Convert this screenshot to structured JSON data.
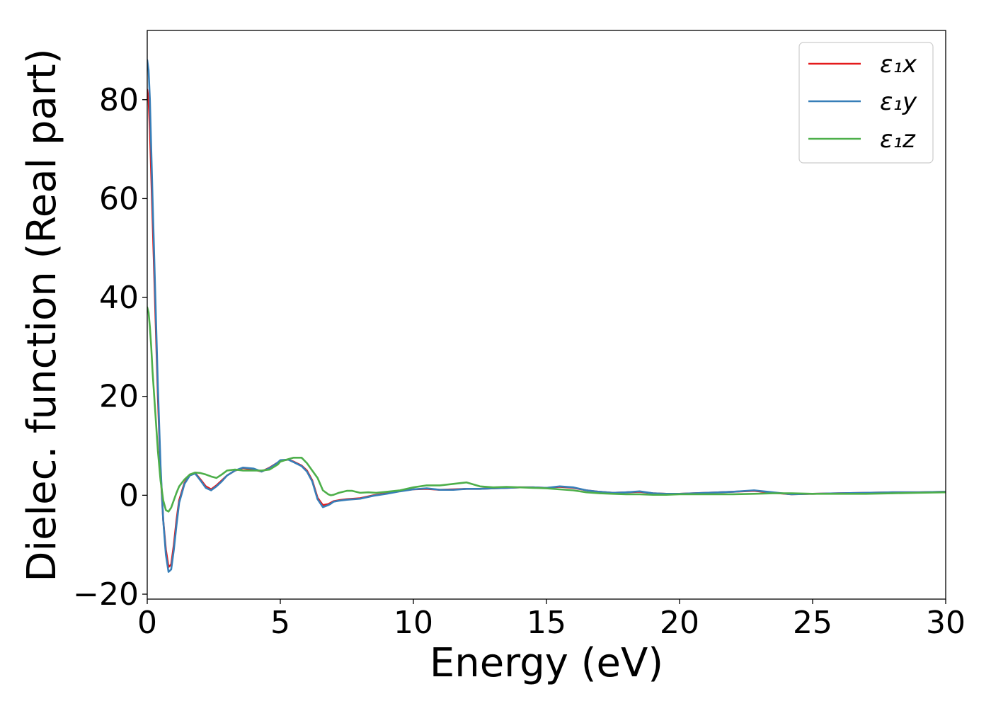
{
  "chart_data": {
    "type": "line",
    "title": "",
    "xlabel": "Energy (eV)",
    "ylabel": "Dielec. function (Real part)",
    "xlim": [
      0,
      30
    ],
    "ylim": [
      -21,
      94
    ],
    "xticks": [
      0,
      5,
      10,
      15,
      20,
      25,
      30
    ],
    "yticks": [
      -20,
      0,
      20,
      40,
      60,
      80
    ],
    "xtick_labels": [
      "0",
      "5",
      "10",
      "15",
      "20",
      "25",
      "30"
    ],
    "ytick_labels": [
      "−20",
      "0",
      "20",
      "40",
      "60",
      "80"
    ],
    "grid": false,
    "legend_position": "top-right",
    "series": [
      {
        "name": "ε₁x",
        "color": "#e41a1c",
        "x": [
          0,
          0.05,
          0.1,
          0.15,
          0.2,
          0.3,
          0.4,
          0.5,
          0.6,
          0.7,
          0.8,
          0.9,
          1.0,
          1.1,
          1.2,
          1.4,
          1.6,
          1.8,
          2.0,
          2.2,
          2.4,
          2.6,
          2.8,
          3.0,
          3.3,
          3.6,
          4.0,
          4.3,
          4.6,
          4.9,
          5.0,
          5.3,
          5.5,
          5.8,
          6.0,
          6.2,
          6.4,
          6.6,
          6.8,
          6.9,
          7.0,
          7.2,
          7.5,
          8.0,
          8.5,
          9.0,
          9.5,
          10.0,
          10.5,
          11.0,
          11.5,
          12.0,
          12.5,
          13.0,
          13.5,
          14.0,
          14.5,
          15.0,
          15.5,
          16.0,
          16.5,
          17.0,
          17.5,
          18.0,
          18.5,
          19.0,
          19.5,
          20.0,
          21.0,
          22.0,
          22.8,
          23.5,
          24.2,
          25.0,
          26.0,
          27.0,
          28.0,
          29.0,
          30.0
        ],
        "y": [
          82,
          80,
          74,
          65,
          56,
          38,
          20,
          5,
          -5,
          -11,
          -14.5,
          -14,
          -10,
          -5,
          -1,
          2.5,
          4.2,
          4.5,
          3.2,
          1.8,
          1.2,
          2.0,
          3.0,
          4.0,
          5.0,
          5.5,
          5.2,
          4.8,
          5.6,
          6.6,
          7.0,
          7.2,
          6.8,
          6.0,
          5.0,
          3.0,
          -0.5,
          -2.0,
          -1.8,
          -1.5,
          -1.2,
          -1.0,
          -0.8,
          -0.6,
          0.0,
          0.4,
          0.9,
          1.2,
          1.3,
          1.1,
          1.2,
          1.3,
          1.3,
          1.4,
          1.5,
          1.6,
          1.6,
          1.5,
          1.7,
          1.5,
          1.0,
          0.7,
          0.5,
          0.6,
          0.7,
          0.4,
          0.3,
          0.3,
          0.5,
          0.7,
          0.9,
          0.5,
          0.2,
          0.3,
          0.4,
          0.5,
          0.6,
          0.6,
          0.7
        ]
      },
      {
        "name": "ε₁y",
        "color": "#377eb8",
        "x": [
          0,
          0.05,
          0.1,
          0.15,
          0.2,
          0.3,
          0.4,
          0.5,
          0.6,
          0.7,
          0.8,
          0.9,
          1.0,
          1.1,
          1.2,
          1.4,
          1.6,
          1.8,
          2.0,
          2.2,
          2.4,
          2.6,
          2.8,
          3.0,
          3.3,
          3.6,
          4.0,
          4.3,
          4.6,
          4.9,
          5.0,
          5.3,
          5.5,
          5.8,
          6.0,
          6.2,
          6.4,
          6.6,
          6.8,
          6.9,
          7.0,
          7.2,
          7.5,
          8.0,
          8.5,
          9.0,
          9.5,
          10.0,
          10.5,
          11.0,
          11.5,
          12.0,
          12.5,
          13.0,
          13.5,
          14.0,
          14.5,
          15.0,
          15.5,
          16.0,
          16.5,
          17.0,
          17.5,
          18.0,
          18.5,
          19.0,
          19.5,
          20.0,
          21.0,
          22.0,
          22.8,
          23.5,
          24.2,
          25.0,
          26.0,
          27.0,
          28.0,
          29.0,
          30.0
        ],
        "y": [
          88,
          86,
          80,
          70,
          60,
          41,
          22,
          6,
          -5,
          -12,
          -15.5,
          -15,
          -11,
          -6,
          -1.5,
          2.3,
          4.0,
          4.4,
          3.0,
          1.5,
          1.0,
          1.8,
          2.8,
          4.0,
          5.0,
          5.6,
          5.4,
          4.8,
          5.5,
          6.6,
          7.1,
          7.2,
          6.7,
          5.9,
          4.8,
          2.8,
          -0.8,
          -2.4,
          -2.0,
          -1.7,
          -1.3,
          -1.1,
          -0.9,
          -0.7,
          -0.1,
          0.3,
          0.8,
          1.2,
          1.4,
          1.1,
          1.1,
          1.3,
          1.3,
          1.4,
          1.5,
          1.6,
          1.6,
          1.5,
          1.8,
          1.6,
          1.0,
          0.7,
          0.5,
          0.6,
          0.8,
          0.4,
          0.3,
          0.3,
          0.5,
          0.7,
          1.0,
          0.6,
          0.2,
          0.3,
          0.4,
          0.5,
          0.6,
          0.6,
          0.7
        ]
      },
      {
        "name": "ε₁z",
        "color": "#4daf4a",
        "x": [
          0,
          0.05,
          0.1,
          0.15,
          0.2,
          0.3,
          0.4,
          0.5,
          0.6,
          0.7,
          0.8,
          0.9,
          1.0,
          1.1,
          1.2,
          1.4,
          1.6,
          1.8,
          2.0,
          2.2,
          2.4,
          2.6,
          2.8,
          3.0,
          3.3,
          3.6,
          4.0,
          4.3,
          4.6,
          4.9,
          5.0,
          5.3,
          5.5,
          5.8,
          6.0,
          6.2,
          6.4,
          6.6,
          6.8,
          6.9,
          7.0,
          7.2,
          7.5,
          7.7,
          8.0,
          8.3,
          8.6,
          9.0,
          9.5,
          10.0,
          10.5,
          11.0,
          11.5,
          12.0,
          12.5,
          13.0,
          13.5,
          14.0,
          14.5,
          15.0,
          15.5,
          16.0,
          16.5,
          17.0,
          17.5,
          18.0,
          18.5,
          19.0,
          19.5,
          20.0,
          21.0,
          22.0,
          22.8,
          23.5,
          24.2,
          25.0,
          26.0,
          27.0,
          28.0,
          29.0,
          30.0
        ],
        "y": [
          38,
          37,
          34,
          30,
          25,
          17,
          9,
          3,
          -1,
          -3,
          -3.3,
          -2.5,
          -1.0,
          0.5,
          1.8,
          3.2,
          4.2,
          4.6,
          4.5,
          4.2,
          3.8,
          3.5,
          4.2,
          5.0,
          5.2,
          5.0,
          5.0,
          5.0,
          5.2,
          6.2,
          6.8,
          7.3,
          7.6,
          7.6,
          6.5,
          5.0,
          3.5,
          1.0,
          0.2,
          0.0,
          0.1,
          0.5,
          0.9,
          0.9,
          0.5,
          0.6,
          0.5,
          0.7,
          1.0,
          1.6,
          2.0,
          2.0,
          2.3,
          2.6,
          1.8,
          1.6,
          1.7,
          1.6,
          1.5,
          1.4,
          1.2,
          1.0,
          0.6,
          0.4,
          0.3,
          0.2,
          0.2,
          0.1,
          0.1,
          0.2,
          0.2,
          0.2,
          0.3,
          0.4,
          0.4,
          0.3,
          0.3,
          0.3,
          0.4,
          0.5,
          0.6
        ]
      }
    ]
  }
}
